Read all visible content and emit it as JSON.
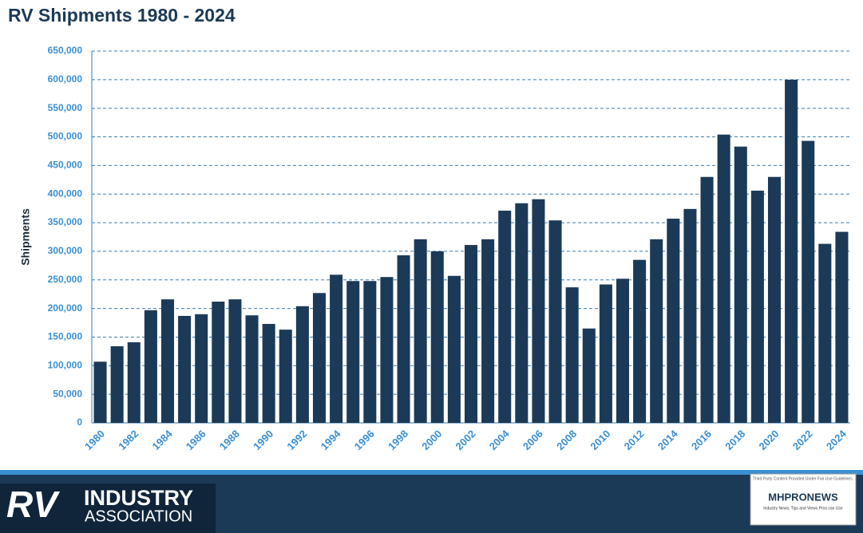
{
  "chart_data": {
    "type": "bar",
    "title": "RV Shipments 1980 - 2024",
    "y_label": "Shipments",
    "categories": [
      "1980",
      null,
      "1982",
      null,
      "1984",
      null,
      "1986",
      null,
      "1988",
      null,
      "1990",
      null,
      "1992",
      null,
      "1994",
      null,
      "1996",
      null,
      "1998",
      null,
      "2000",
      null,
      "2002",
      null,
      "2004",
      null,
      "2006",
      null,
      "2008",
      null,
      "2010",
      null,
      "2012",
      null,
      "2014",
      null,
      "2016",
      null,
      "2018",
      null,
      "2020",
      null,
      "2022",
      null,
      "2024"
    ],
    "values": [
      107000,
      134000,
      141000,
      197000,
      216000,
      187000,
      190000,
      212000,
      216000,
      188000,
      173000,
      163000,
      204000,
      227000,
      259000,
      248000,
      248000,
      255000,
      293000,
      321000,
      300000,
      257000,
      311000,
      321000,
      371000,
      384000,
      391000,
      354000,
      237000,
      165000,
      242000,
      252000,
      285000,
      321000,
      357000,
      374000,
      430000,
      504000,
      483000,
      406000,
      430000,
      600000,
      493000,
      313000,
      334000
    ],
    "color": "#1b3a57",
    "ylim": [
      0,
      650000
    ],
    "yticks": [
      0,
      {
        "value": 50000,
        "label": "50,000"
      },
      {
        "value": 100000,
        "label": "100,000"
      },
      {
        "value": 150000,
        "label": "150,000"
      },
      {
        "value": 200000,
        "label": "200,000"
      },
      {
        "value": 250000,
        "label": "250,000"
      },
      {
        "value": 300000,
        "label": "300,000"
      },
      {
        "value": 350000,
        "label": "350,000"
      },
      {
        "value": 400000,
        "label": "400,000"
      },
      {
        "value": 450000,
        "label": "450,000"
      },
      {
        "value": 500000,
        "label": "500,000"
      },
      {
        "value": 550000,
        "label": "550,000"
      },
      {
        "value": 600000,
        "label": "600,000"
      },
      {
        "value": 650000,
        "label": "650,000"
      }
    ],
    "grid": true
  },
  "footer": {
    "logo_main": "RV",
    "logo_line1": "INDUSTRY",
    "logo_line2": "ASSOCIATION",
    "badge_note": "Third Party Content Provided Under Fair Use Guidelines.",
    "badge_name": "MHPRONEWS",
    "badge_tagline": "Industry News, Tips and Views Pros can Use"
  }
}
